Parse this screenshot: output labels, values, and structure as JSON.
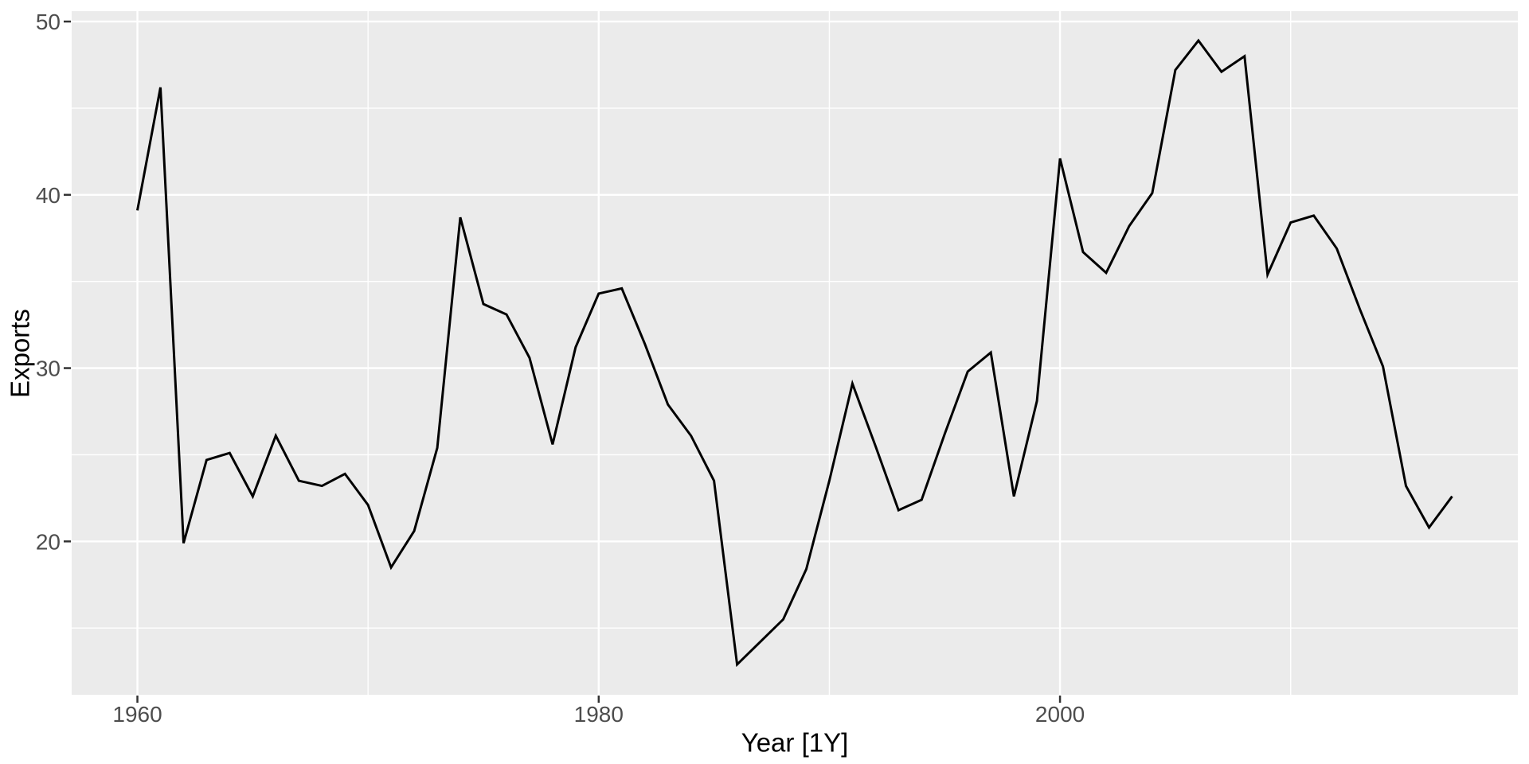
{
  "chart_data": {
    "type": "line",
    "title": "",
    "xlabel": "Year [1Y]",
    "ylabel": "Exports",
    "x": [
      1960,
      1961,
      1962,
      1963,
      1964,
      1965,
      1966,
      1967,
      1968,
      1969,
      1970,
      1971,
      1972,
      1973,
      1974,
      1975,
      1976,
      1977,
      1978,
      1979,
      1980,
      1981,
      1982,
      1983,
      1984,
      1985,
      1986,
      1987,
      1988,
      1989,
      1990,
      1991,
      1992,
      1993,
      1994,
      1995,
      1996,
      1997,
      1998,
      1999,
      2000,
      2001,
      2002,
      2003,
      2004,
      2005,
      2006,
      2007,
      2008,
      2009,
      2010,
      2011,
      2012,
      2013,
      2014,
      2015,
      2016,
      2017
    ],
    "values": [
      39.1,
      46.2,
      19.9,
      24.7,
      25.1,
      22.6,
      26.1,
      23.5,
      23.2,
      23.9,
      22.1,
      18.5,
      20.6,
      25.4,
      38.7,
      33.7,
      33.1,
      30.6,
      25.6,
      31.2,
      34.3,
      34.6,
      31.4,
      27.9,
      26.1,
      23.5,
      12.9,
      14.2,
      15.5,
      18.4,
      23.5,
      29.1,
      25.5,
      21.8,
      22.4,
      26.2,
      29.8,
      30.9,
      22.6,
      28.1,
      42.1,
      36.7,
      35.5,
      38.2,
      40.1,
      47.2,
      48.9,
      47.1,
      48.0,
      35.4,
      38.4,
      38.8,
      36.9,
      33.4,
      30.1,
      23.2,
      20.8,
      22.6
    ],
    "xlim": [
      1957.15,
      2019.85
    ],
    "ylim": [
      11.15,
      50.6
    ],
    "x_ticks_major": [
      1960,
      1980,
      2000
    ],
    "x_tick_labels": [
      "1960",
      "1980",
      "2000"
    ],
    "x_ticks_minor": [
      1970,
      1990,
      2010
    ],
    "y_ticks_major": [
      20,
      30,
      40,
      50
    ],
    "y_tick_labels": [
      "20",
      "30",
      "40",
      "50"
    ],
    "y_ticks_minor": [
      15,
      25,
      35,
      45
    ],
    "grid": "on",
    "legend": "none",
    "colors": {
      "line": "#000000",
      "panel_bg": "#EBEBEB",
      "grid_major": "#FFFFFF",
      "grid_minor": "#FFFFFF",
      "tick_mark": "#333333",
      "tick_label": "#4D4D4D",
      "axis_title": "#000000",
      "background": "#FFFFFF"
    }
  }
}
